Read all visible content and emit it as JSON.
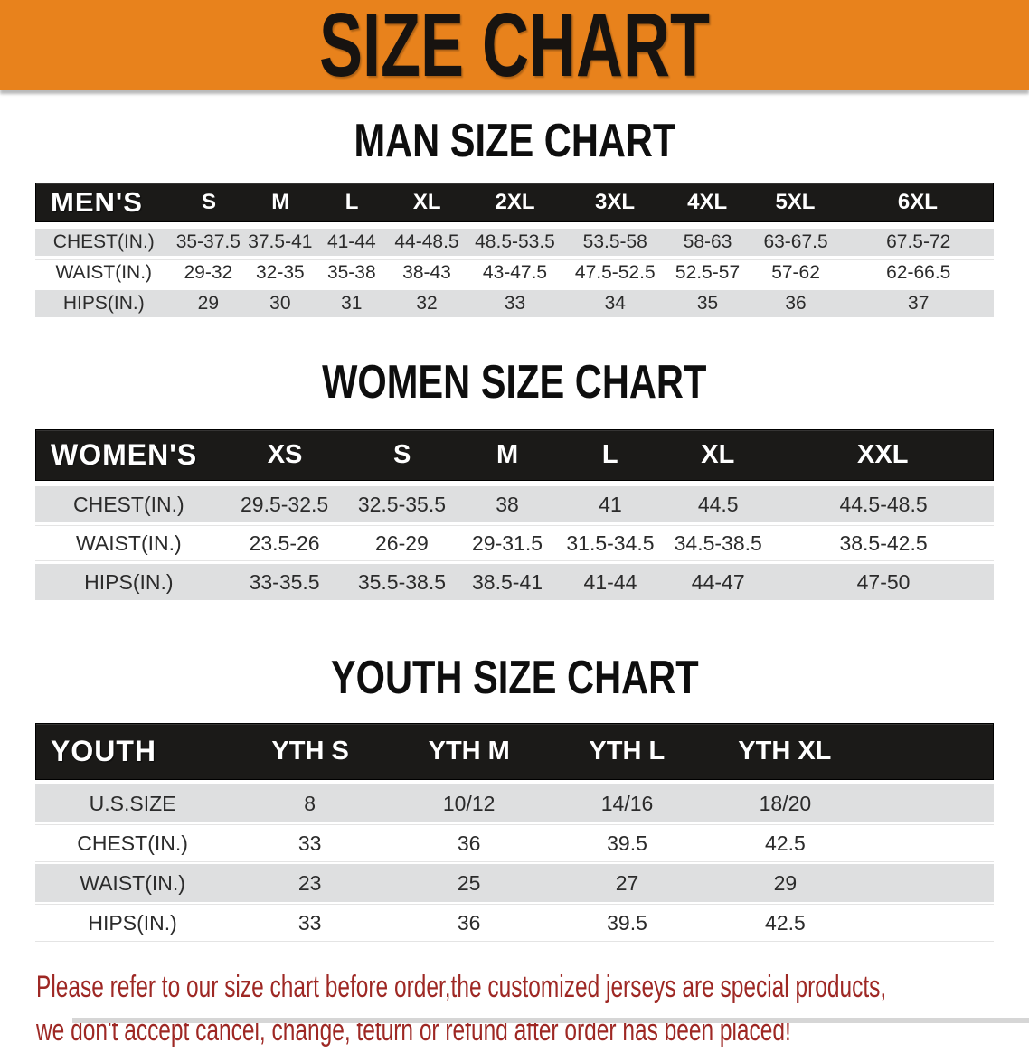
{
  "banner": {
    "title": "SIZE CHART",
    "bg_color": "#E8821C"
  },
  "sections": [
    {
      "heading": "MAN SIZE CHART",
      "table": {
        "label": "MEN'S",
        "columns": [
          "S",
          "M",
          "L",
          "XL",
          "2XL",
          "3XL",
          "4XL",
          "5XL",
          "6XL"
        ],
        "rows": [
          {
            "label": "CHEST(IN.)",
            "values": [
              "35-37.5",
              "37.5-41",
              "41-44",
              "44-48.5",
              "48.5-53.5",
              "53.5-58",
              "58-63",
              "63-67.5",
              "67.5-72"
            ]
          },
          {
            "label": "WAIST(IN.)",
            "values": [
              "29-32",
              "32-35",
              "35-38",
              "38-43",
              "43-47.5",
              "47.5-52.5",
              "52.5-57",
              "57-62",
              "62-66.5"
            ]
          },
          {
            "label": "HIPS(IN.)",
            "values": [
              "29",
              "30",
              "31",
              "32",
              "33",
              "34",
              "35",
              "36",
              "37"
            ]
          }
        ]
      }
    },
    {
      "heading": "WOMEN SIZE CHART",
      "table": {
        "label": "WOMEN'S",
        "columns": [
          "XS",
          "S",
          "M",
          "L",
          "XL",
          "XXL"
        ],
        "rows": [
          {
            "label": "CHEST(IN.)",
            "values": [
              "29.5-32.5",
              "32.5-35.5",
              "38",
              "41",
              "44.5",
              "44.5-48.5"
            ]
          },
          {
            "label": "WAIST(IN.)",
            "values": [
              "23.5-26",
              "26-29",
              "29-31.5",
              "31.5-34.5",
              "34.5-38.5",
              "38.5-42.5"
            ]
          },
          {
            "label": "HIPS(IN.)",
            "values": [
              "33-35.5",
              "35.5-38.5",
              "38.5-41",
              "41-44",
              "44-47",
              "47-50"
            ]
          }
        ]
      }
    },
    {
      "heading": "YOUTH SIZE CHART",
      "table": {
        "label": "YOUTH",
        "columns": [
          "YTH S",
          "YTH M",
          "YTH L",
          "YTH XL"
        ],
        "rows": [
          {
            "label": "U.S.SIZE",
            "values": [
              "8",
              "10/12",
              "14/16",
              "18/20"
            ]
          },
          {
            "label": "CHEST(IN.)",
            "values": [
              "33",
              "36",
              "39.5",
              "42.5"
            ]
          },
          {
            "label": "WAIST(IN.)",
            "values": [
              "23",
              "25",
              "27",
              "29"
            ]
          },
          {
            "label": "HIPS(IN.)",
            "values": [
              "33",
              "36",
              "39.5",
              "42.5"
            ]
          }
        ]
      }
    }
  ],
  "disclaimer": {
    "line1": "Please refer to our size chart before order,the customized jerseys are special products,",
    "line2": "we don't accept cancel, change, teturn or refund after order has been placed!",
    "color": "#9E2824"
  }
}
